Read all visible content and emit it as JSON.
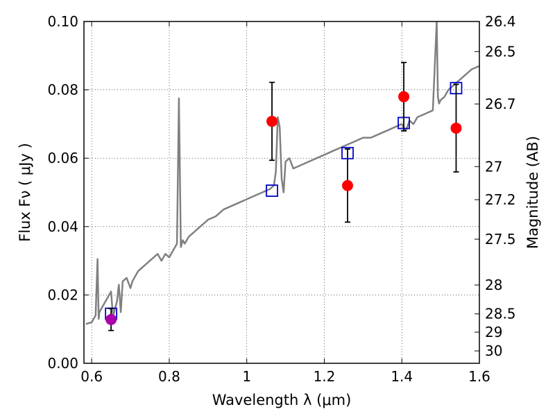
{
  "chart_data": {
    "type": "scatter",
    "xlabel": "Wavelength  λ (μm)",
    "ylabel": "Flux  Fν  ( μJy )",
    "y2label": "Magnitude (AB)",
    "xlim": [
      0.58,
      1.6
    ],
    "ylim": [
      0.0,
      0.1
    ],
    "grid": true,
    "x_ticks": [
      {
        "value": 0.6,
        "label": "0.6"
      },
      {
        "value": 0.8,
        "label": "0.8"
      },
      {
        "value": 1.0,
        "label": "1"
      },
      {
        "value": 1.2,
        "label": "1.2"
      },
      {
        "value": 1.4,
        "label": "1.4"
      },
      {
        "value": 1.6,
        "label": "1.6"
      }
    ],
    "y_ticks": [
      {
        "value": 0.0,
        "label": "0.00"
      },
      {
        "value": 0.02,
        "label": "0.02"
      },
      {
        "value": 0.04,
        "label": "0.04"
      },
      {
        "value": 0.06,
        "label": "0.06"
      },
      {
        "value": 0.08,
        "label": "0.08"
      },
      {
        "value": 0.1,
        "label": "0.10"
      }
    ],
    "y2_ticks": [
      {
        "value": 26.4,
        "label": "26.4"
      },
      {
        "value": 26.5,
        "label": "26.5"
      },
      {
        "value": 26.7,
        "label": "26.7"
      },
      {
        "value": 27,
        "label": "27"
      },
      {
        "value": 27.2,
        "label": "27.2"
      },
      {
        "value": 27.5,
        "label": "27.5"
      },
      {
        "value": 28,
        "label": "28"
      },
      {
        "value": 28.5,
        "label": "28.5"
      },
      {
        "value": 29,
        "label": "29"
      },
      {
        "value": 30,
        "label": "30"
      }
    ],
    "series": [
      {
        "style": "line",
        "color": "#808080",
        "x": [
          0.585,
          0.6,
          0.605,
          0.61,
          0.615,
          0.618,
          0.62,
          0.625,
          0.63,
          0.635,
          0.64,
          0.645,
          0.65,
          0.655,
          0.66,
          0.665,
          0.67,
          0.675,
          0.68,
          0.69,
          0.7,
          0.705,
          0.71,
          0.715,
          0.72,
          0.73,
          0.74,
          0.75,
          0.76,
          0.77,
          0.78,
          0.79,
          0.8,
          0.81,
          0.815,
          0.82,
          0.825,
          0.83,
          0.835,
          0.84,
          0.85,
          0.86,
          0.87,
          0.88,
          0.89,
          0.9,
          0.92,
          0.94,
          0.96,
          0.98,
          1.0,
          1.02,
          1.04,
          1.06,
          1.07,
          1.075,
          1.08,
          1.085,
          1.09,
          1.095,
          1.1,
          1.11,
          1.12,
          1.14,
          1.16,
          1.18,
          1.2,
          1.22,
          1.24,
          1.26,
          1.28,
          1.3,
          1.32,
          1.34,
          1.36,
          1.38,
          1.4,
          1.41,
          1.42,
          1.43,
          1.44,
          1.46,
          1.48,
          1.49,
          1.493,
          1.496,
          1.5,
          1.51,
          1.52,
          1.54,
          1.56,
          1.58,
          1.6
        ],
        "y": [
          0.0115,
          0.012,
          0.013,
          0.014,
          0.0305,
          0.013,
          0.015,
          0.016,
          0.017,
          0.018,
          0.019,
          0.02,
          0.021,
          0.0135,
          0.016,
          0.018,
          0.023,
          0.015,
          0.024,
          0.025,
          0.022,
          0.024,
          0.025,
          0.026,
          0.027,
          0.028,
          0.029,
          0.03,
          0.031,
          0.032,
          0.03,
          0.032,
          0.031,
          0.033,
          0.034,
          0.035,
          0.0775,
          0.034,
          0.036,
          0.035,
          0.037,
          0.038,
          0.039,
          0.04,
          0.041,
          0.042,
          0.043,
          0.045,
          0.046,
          0.047,
          0.048,
          0.049,
          0.05,
          0.051,
          0.052,
          0.056,
          0.072,
          0.069,
          0.054,
          0.05,
          0.059,
          0.06,
          0.057,
          0.058,
          0.059,
          0.06,
          0.061,
          0.062,
          0.063,
          0.064,
          0.065,
          0.066,
          0.066,
          0.067,
          0.068,
          0.069,
          0.07,
          0.068,
          0.071,
          0.07,
          0.072,
          0.073,
          0.074,
          0.1,
          0.078,
          0.076,
          0.077,
          0.078,
          0.08,
          0.082,
          0.084,
          0.086,
          0.087
        ]
      },
      {
        "style": "open-square",
        "color": "#0000cc",
        "x": [
          0.65,
          1.065,
          1.26,
          1.405,
          1.54
        ],
        "y": [
          0.0145,
          0.0505,
          0.0615,
          0.0703,
          0.0805
        ]
      },
      {
        "style": "filled-circle-errorbar",
        "color": "#ff0000",
        "x": [
          1.065,
          1.26,
          1.405,
          1.54
        ],
        "y": [
          0.0708,
          0.052,
          0.078,
          0.0688
        ],
        "yerr": [
          0.0114,
          0.0107,
          0.01,
          0.0128
        ]
      },
      {
        "style": "filled-circle-errorbar",
        "color": "#aa00aa",
        "x": [
          0.65
        ],
        "y": [
          0.0128
        ],
        "yerr": [
          0.0032
        ]
      }
    ]
  }
}
